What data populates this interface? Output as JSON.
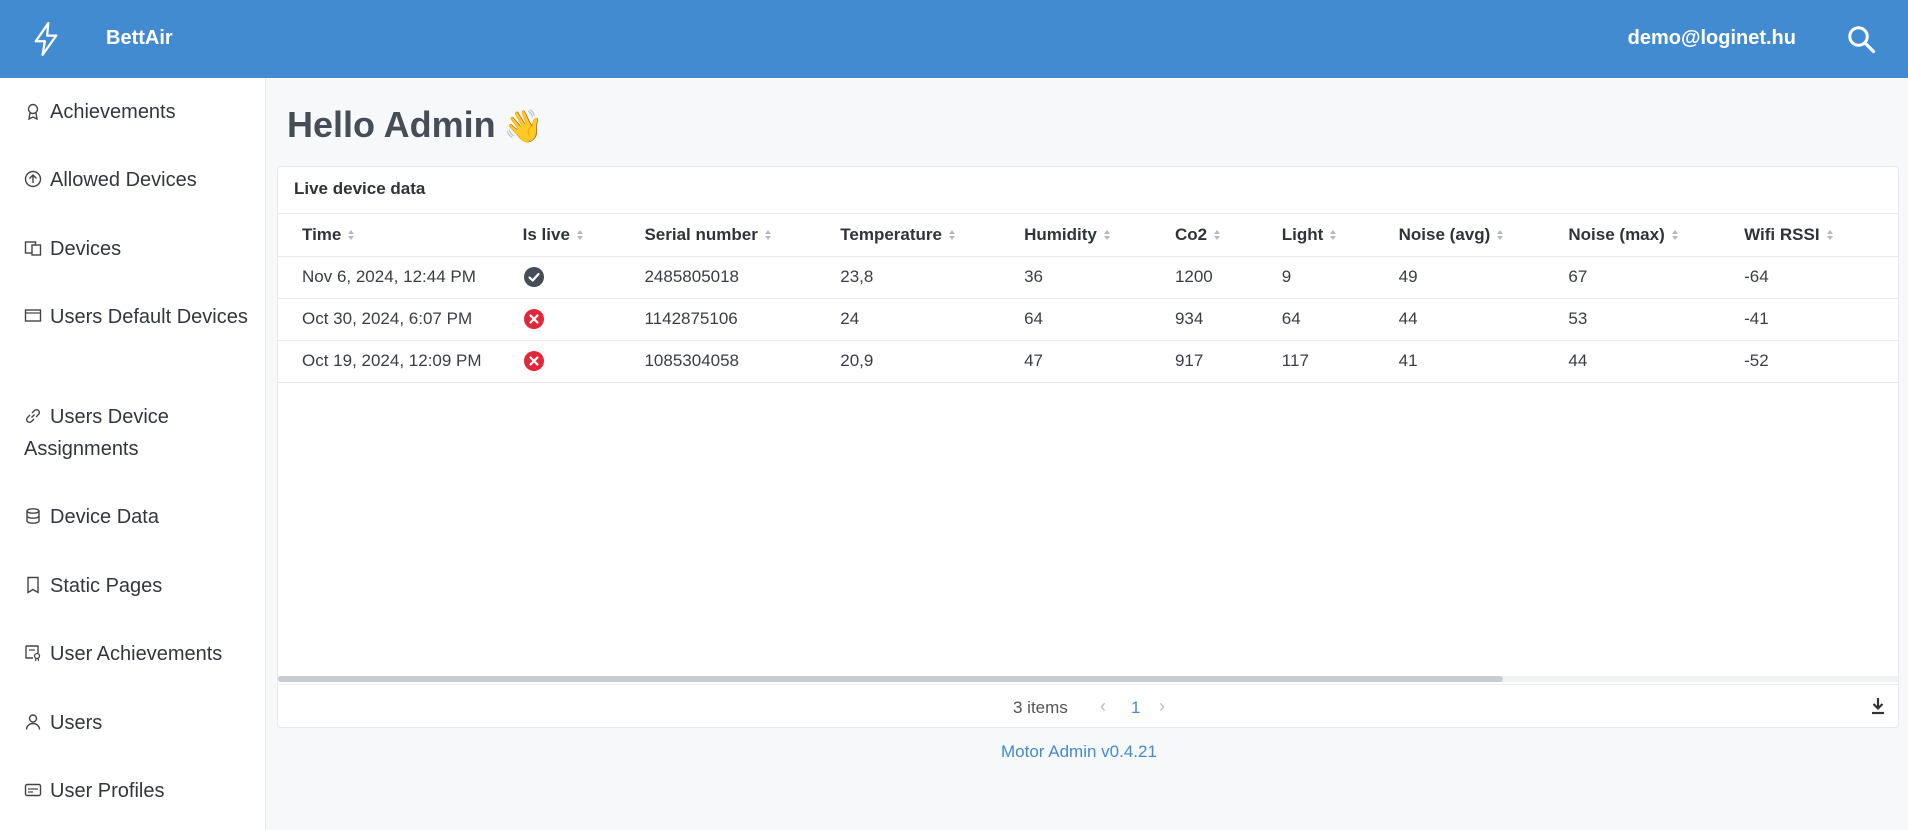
{
  "header": {
    "app_name": "BettAir",
    "user_email": "demo@loginet.hu",
    "accent_color": "#428bd0"
  },
  "sidebar": {
    "items": [
      {
        "label": "Achievements",
        "icon": "award-icon"
      },
      {
        "label": "Allowed Devices",
        "icon": "upload-circle-icon"
      },
      {
        "label": "Devices",
        "icon": "devices-icon"
      },
      {
        "label": "Users Default Devices",
        "icon": "monitor-icon"
      },
      {
        "label": "Users Device Assignments",
        "icon": "link-icon"
      },
      {
        "label": "Device Data",
        "icon": "database-icon"
      },
      {
        "label": "Static Pages",
        "icon": "page-icon"
      },
      {
        "label": "User Achievements",
        "icon": "certificate-icon"
      },
      {
        "label": "Users",
        "icon": "user-icon"
      },
      {
        "label": "User Profiles",
        "icon": "id-card-icon"
      }
    ]
  },
  "main": {
    "greeting": "Hello Admin",
    "card_title": "Live device data",
    "columns": [
      "Time",
      "Is live",
      "Serial number",
      "Temperature",
      "Humidity",
      "Co2",
      "Light",
      "Noise (avg)",
      "Noise (max)",
      "Wifi RSSI"
    ],
    "rows": [
      {
        "time": "Nov 6, 2024, 12:44 PM",
        "is_live": true,
        "serial": "2485805018",
        "temperature": "23,8",
        "humidity": "36",
        "co2": "1200",
        "light": "9",
        "noise_avg": "49",
        "noise_max": "67",
        "wifi_rssi": "-64"
      },
      {
        "time": "Oct 30, 2024, 6:07 PM",
        "is_live": false,
        "serial": "1142875106",
        "temperature": "24",
        "humidity": "64",
        "co2": "934",
        "light": "64",
        "noise_avg": "44",
        "noise_max": "53",
        "wifi_rssi": "-41"
      },
      {
        "time": "Oct 19, 2024, 12:09 PM",
        "is_live": false,
        "serial": "1085304058",
        "temperature": "20,9",
        "humidity": "47",
        "co2": "917",
        "light": "117",
        "noise_avg": "41",
        "noise_max": "44",
        "wifi_rssi": "-52"
      }
    ],
    "items_count": "3 items",
    "current_page": "1"
  },
  "footer": {
    "version": "Motor Admin v0.4.21"
  },
  "colors": {
    "live": "#474d57",
    "not_live": "#e0283a"
  }
}
